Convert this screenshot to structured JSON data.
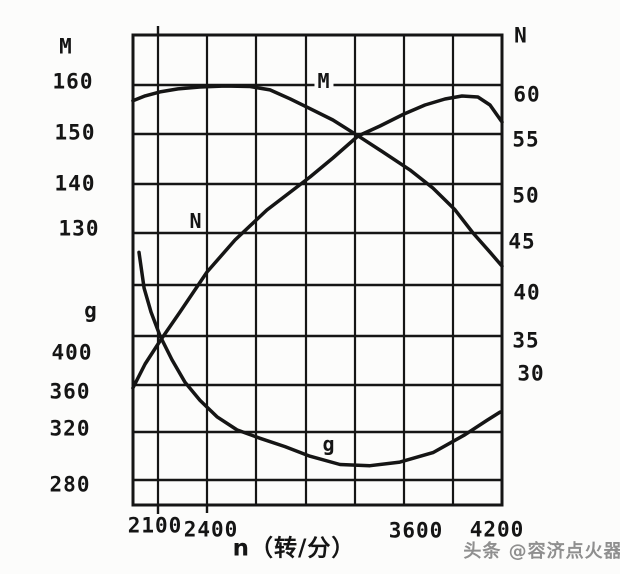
{
  "page": {
    "background": "#fcfcfb",
    "ink": "#151515",
    "watermark_color": "#8f8f8f"
  },
  "watermark": {
    "text": "头条 @容济点火器"
  },
  "axes": {
    "left_torque": {
      "title": "M",
      "ticks": [
        "160",
        "150",
        "140",
        "130"
      ]
    },
    "left_fuel": {
      "title": "g",
      "ticks": [
        "400",
        "360",
        "320",
        "280"
      ]
    },
    "right_power": {
      "title": "N",
      "ticks": [
        "60",
        "55",
        "50",
        "45",
        "40",
        "35",
        "30"
      ]
    },
    "x": {
      "title": "n（转/分）",
      "ticks": [
        "2100",
        "2400",
        "3600",
        "4200"
      ]
    }
  },
  "curve_labels": {
    "torque": "M",
    "power": "N",
    "fuel": "g"
  },
  "chart_data": {
    "type": "line",
    "title": "",
    "xlabel": "n（转/分）",
    "x_axis": {
      "range": [
        1947,
        4200
      ],
      "gridline_interval": 300,
      "labeled_ticks": [
        2100,
        2400,
        3600,
        4200
      ]
    },
    "left_axis_torque": {
      "label": "M",
      "ticks": [
        160,
        150,
        140,
        130
      ]
    },
    "left_axis_fuel": {
      "label": "g",
      "ticks": [
        400,
        360,
        320,
        280
      ]
    },
    "right_axis_power": {
      "label": "N",
      "ticks": [
        60,
        55,
        50,
        45,
        40,
        35,
        30
      ]
    },
    "grid": "on",
    "series": [
      {
        "name": "M",
        "axis": "M",
        "points": [
          [
            1947,
            156.8
          ],
          [
            2021,
            157.8
          ],
          [
            2112,
            158.6
          ],
          [
            2222,
            159.2
          ],
          [
            2356,
            159.6
          ],
          [
            2509,
            159.8
          ],
          [
            2662,
            159.7
          ],
          [
            2784,
            159.0
          ],
          [
            2906,
            157.2
          ],
          [
            3010,
            155.5
          ],
          [
            3168,
            152.9
          ],
          [
            3321,
            149.7
          ],
          [
            3455,
            146.8
          ],
          [
            3638,
            142.8
          ],
          [
            3779,
            139.1
          ],
          [
            3913,
            134.7
          ],
          [
            4023,
            130.0
          ],
          [
            4127,
            126.1
          ],
          [
            4200,
            123.3
          ]
        ]
      },
      {
        "name": "N",
        "axis": "N",
        "points": [
          [
            1947,
            29.7
          ],
          [
            2021,
            32.1
          ],
          [
            2112,
            34.4
          ],
          [
            2234,
            37.3
          ],
          [
            2399,
            41.3
          ],
          [
            2570,
            44.5
          ],
          [
            2765,
            47.5
          ],
          [
            3028,
            50.8
          ],
          [
            3168,
            52.7
          ],
          [
            3321,
            54.9
          ],
          [
            3455,
            55.9
          ],
          [
            3602,
            57.1
          ],
          [
            3730,
            58.0
          ],
          [
            3852,
            58.6
          ],
          [
            3956,
            58.9
          ],
          [
            4053,
            58.8
          ],
          [
            4127,
            58.0
          ],
          [
            4200,
            56.3
          ]
        ]
      },
      {
        "name": "g",
        "axis": "g",
        "points": [
          [
            1984,
            471
          ],
          [
            2015,
            441
          ],
          [
            2057,
            421
          ],
          [
            2112,
            401
          ],
          [
            2185,
            381
          ],
          [
            2265,
            362
          ],
          [
            2356,
            347
          ],
          [
            2460,
            333
          ],
          [
            2582,
            322
          ],
          [
            2723,
            315
          ],
          [
            2875,
            308
          ],
          [
            3028,
            300
          ],
          [
            3211,
            293
          ],
          [
            3394,
            292
          ],
          [
            3577,
            295
          ],
          [
            3779,
            303
          ],
          [
            3974,
            318
          ],
          [
            4108,
            330
          ],
          [
            4188,
            337
          ]
        ]
      }
    ]
  }
}
